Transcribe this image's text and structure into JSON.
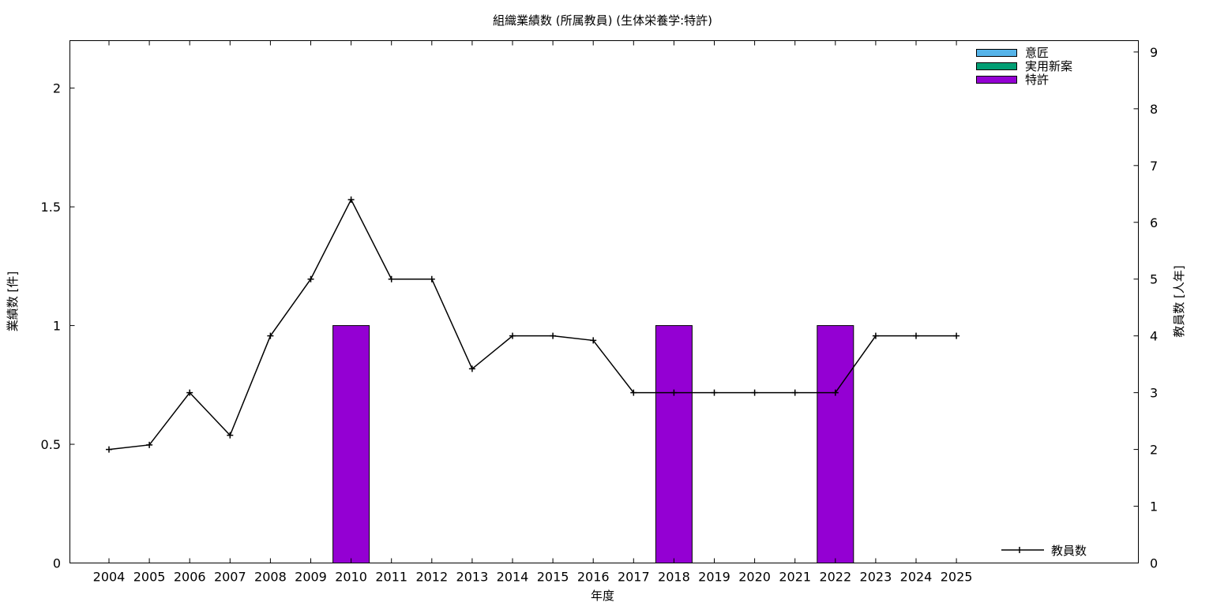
{
  "chart_data": {
    "type": "bar",
    "title": "組織業績数 (所属教員) (生体栄養学:特許)",
    "xlabel": "年度",
    "ylabel": "業績数 [件]",
    "y2label": "教員数 [人年]",
    "categories": [
      "2004",
      "2005",
      "2006",
      "2007",
      "2008",
      "2009",
      "2010",
      "2011",
      "2012",
      "2013",
      "2014",
      "2015",
      "2016",
      "2017",
      "2018",
      "2019",
      "2020",
      "2021",
      "2022",
      "2023",
      "2024",
      "2025"
    ],
    "ylim": [
      0,
      2.2
    ],
    "y_ticks": [
      "0",
      "0.5",
      "1",
      "1.5",
      "2"
    ],
    "y2lim": [
      0,
      9.2
    ],
    "y2_ticks": [
      "0",
      "1",
      "2",
      "3",
      "4",
      "5",
      "6",
      "7",
      "8",
      "9"
    ],
    "series": [
      {
        "name": "意匠",
        "kind": "bar",
        "color": "#56b4e9",
        "values": [
          0,
          0,
          0,
          0,
          0,
          0,
          0,
          0,
          0,
          0,
          0,
          0,
          0,
          0,
          0,
          0,
          0,
          0,
          0,
          0,
          0,
          0
        ]
      },
      {
        "name": "実用新案",
        "kind": "bar",
        "color": "#009e73",
        "values": [
          0,
          0,
          0,
          0,
          0,
          0,
          0,
          0,
          0,
          0,
          0,
          0,
          0,
          0,
          0,
          0,
          0,
          0,
          0,
          0,
          0,
          0
        ]
      },
      {
        "name": "特許",
        "kind": "bar",
        "color": "#9400d3",
        "values": [
          0,
          0,
          0,
          0,
          0,
          0,
          1,
          0,
          0,
          0,
          0,
          0,
          0,
          0,
          1,
          0,
          0,
          0,
          1,
          0,
          0,
          0
        ]
      },
      {
        "name": "教員数",
        "kind": "line",
        "axis": "y2",
        "color": "#000000",
        "values": [
          2,
          2.08,
          3,
          2.25,
          4,
          5,
          6.4,
          5,
          5,
          3.42,
          4,
          4,
          3.92,
          3,
          3,
          3,
          3,
          3,
          3,
          4,
          4,
          4
        ]
      }
    ],
    "legend_position": "top-right",
    "line_legend_position": "bottom-right",
    "grid": false
  }
}
